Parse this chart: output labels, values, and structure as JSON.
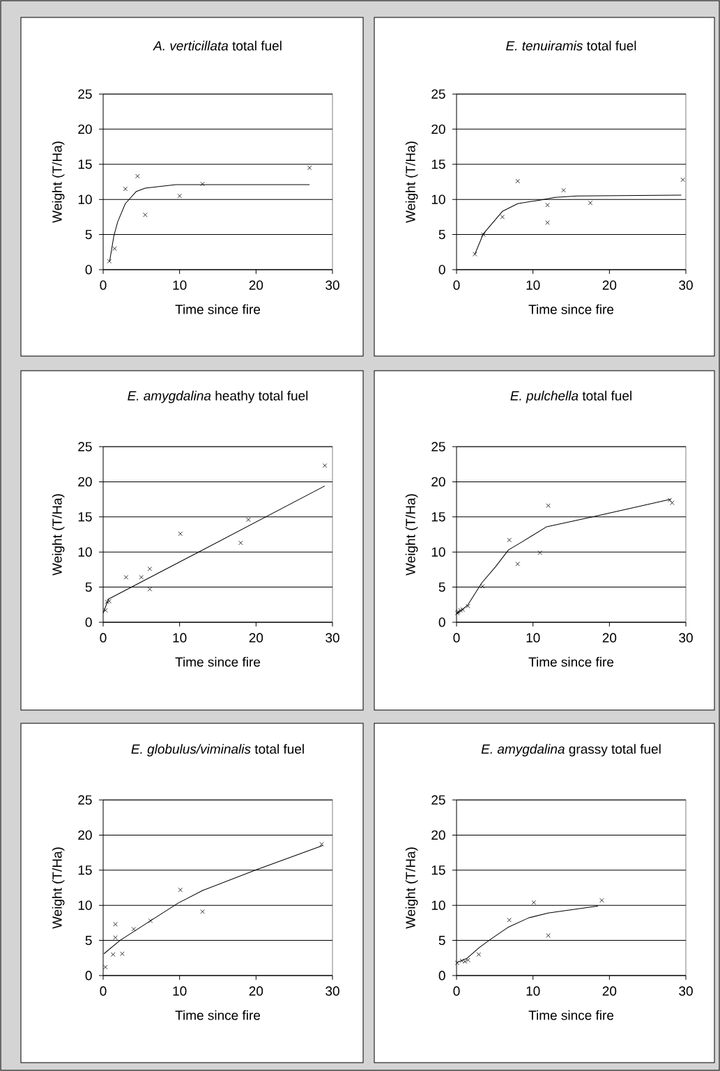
{
  "chart_data": [
    {
      "type": "scatter",
      "title": "*A. verticillata* total fuel",
      "xlabel": "Time since fire",
      "ylabel": "Weight (T/Ha)",
      "xlim": [
        0,
        30
      ],
      "ylim": [
        0,
        25
      ],
      "xticks": [
        0,
        10,
        20,
        30
      ],
      "yticks": [
        0,
        5,
        10,
        15,
        20,
        25
      ],
      "grid": "y",
      "series": [
        {
          "marker": "cross",
          "color": "#000000",
          "x": [
            0.8,
            1.5,
            2.9,
            4.5,
            5.5,
            10,
            13,
            27
          ],
          "values": [
            1.2,
            3.0,
            11.5,
            13.3,
            7.8,
            10.5,
            12.2,
            14.5
          ]
        },
        {
          "type": "line",
          "marker": "none",
          "color": "#000000",
          "x": [
            0.85,
            1.4,
            1.9,
            2.9,
            4.3,
            5.5,
            9.5,
            27
          ],
          "values": [
            1.2,
            4.8,
            6.8,
            9.4,
            11.1,
            11.6,
            12.1,
            12.1
          ]
        }
      ]
    },
    {
      "type": "scatter",
      "title": "*E. tenuiramis* total fuel",
      "xlabel": "Time since fire",
      "ylabel": "Weight (T/Ha)",
      "xlim": [
        0,
        30
      ],
      "ylim": [
        0,
        25
      ],
      "xticks": [
        0,
        10,
        20,
        30
      ],
      "yticks": [
        0,
        5,
        10,
        15,
        20,
        25
      ],
      "grid": "y",
      "series": [
        {
          "marker": "cross",
          "color": "#000000",
          "x": [
            2.4,
            3.5,
            6.0,
            8.0,
            11.9,
            11.9,
            14.0,
            17.5,
            29.6
          ],
          "values": [
            2.2,
            5.0,
            7.5,
            12.6,
            9.2,
            6.7,
            11.3,
            9.5,
            12.8
          ]
        },
        {
          "type": "line",
          "marker": "none",
          "color": "#000000",
          "x": [
            2.4,
            3.5,
            6.0,
            8.0,
            10.9,
            12.9,
            15.8,
            29.4
          ],
          "values": [
            2.2,
            5.1,
            8.3,
            9.4,
            9.9,
            10.3,
            10.5,
            10.6
          ]
        }
      ]
    },
    {
      "type": "scatter",
      "title": "*E. amygdalina* heathy total fuel",
      "xlabel": "Time since fire",
      "ylabel": "Weight (T/Ha)",
      "xlim": [
        0,
        30
      ],
      "ylim": [
        0,
        25
      ],
      "xticks": [
        0,
        10,
        20,
        30
      ],
      "yticks": [
        0,
        5,
        10,
        15,
        20,
        25
      ],
      "grid": "y",
      "series": [
        {
          "marker": "cross",
          "color": "#000000",
          "x": [
            0.3,
            0.5,
            0.8,
            3.0,
            5.0,
            6.1,
            6.1,
            10.1,
            18,
            19,
            29
          ],
          "values": [
            1.7,
            2.9,
            3.0,
            6.4,
            6.4,
            7.6,
            4.7,
            12.6,
            11.3,
            14.6,
            22.3
          ]
        },
        {
          "type": "line",
          "marker": "none",
          "color": "#000000",
          "x": [
            0,
            0.7,
            12.5,
            29
          ],
          "values": [
            1.3,
            3.3,
            10.0,
            19.4
          ]
        }
      ]
    },
    {
      "type": "scatter",
      "title": "*E. pulchella* total fuel",
      "xlabel": "Time since fire",
      "ylabel": "Weight (T/Ha)",
      "xlim": [
        0,
        30
      ],
      "ylim": [
        0,
        25
      ],
      "xticks": [
        0,
        10,
        20,
        30
      ],
      "yticks": [
        0,
        5,
        10,
        15,
        20,
        25
      ],
      "grid": "y",
      "series": [
        {
          "marker": "cross",
          "color": "#000000",
          "x": [
            0.1,
            0.2,
            0.5,
            0.8,
            1.5,
            3.4,
            6.9,
            8.0,
            10.9,
            12,
            27.9,
            28.2
          ],
          "values": [
            1.3,
            1.5,
            1.7,
            1.8,
            2.3,
            5.1,
            11.7,
            8.3,
            9.9,
            16.6,
            17.4,
            17.0
          ]
        },
        {
          "type": "line",
          "marker": "none",
          "color": "#000000",
          "x": [
            0.1,
            1.5,
            3.3,
            5.1,
            6.8,
            8.5,
            11.8,
            18.2,
            28
          ],
          "values": [
            1.2,
            2.5,
            5.6,
            7.9,
            10.3,
            11.4,
            13.6,
            15.1,
            17.5
          ]
        }
      ]
    },
    {
      "type": "scatter",
      "title": "*E. globulus/viminalis* total fuel",
      "xlabel": "Time since fire",
      "ylabel": "Weight (T/Ha)",
      "xlim": [
        0,
        30
      ],
      "ylim": [
        0,
        25
      ],
      "xticks": [
        0,
        10,
        20,
        30
      ],
      "yticks": [
        0,
        5,
        10,
        15,
        20,
        25
      ],
      "grid": "y",
      "series": [
        {
          "marker": "cross",
          "color": "#000000",
          "x": [
            0.3,
            1.3,
            1.6,
            1.6,
            2.5,
            4.0,
            6.2,
            10.1,
            13,
            28.6
          ],
          "values": [
            1.2,
            3.0,
            7.3,
            5.4,
            3.1,
            6.6,
            7.8,
            12.2,
            9.1,
            18.7
          ]
        },
        {
          "type": "line",
          "marker": "none",
          "color": "#000000",
          "x": [
            0.1,
            2.2,
            6.2,
            9.8,
            13,
            19.9,
            28.7
          ],
          "values": [
            3.1,
            5.0,
            7.8,
            10.3,
            12.1,
            15.0,
            18.5
          ]
        }
      ]
    },
    {
      "type": "scatter",
      "title": "*E. amygdalina* grassy total fuel",
      "xlabel": "Time since fire",
      "ylabel": "Weight (T/Ha)",
      "xlim": [
        0,
        30
      ],
      "ylim": [
        0,
        25
      ],
      "xticks": [
        0,
        10,
        20,
        30
      ],
      "yticks": [
        0,
        5,
        10,
        15,
        20,
        25
      ],
      "grid": "y",
      "series": [
        {
          "marker": "cross",
          "color": "#000000",
          "x": [
            0.1,
            0.7,
            1.1,
            1.5,
            2.9,
            6.9,
            10.1,
            12,
            19
          ],
          "values": [
            1.8,
            2.1,
            2.0,
            2.2,
            3.0,
            7.9,
            10.4,
            5.7,
            10.7
          ]
        },
        {
          "type": "line",
          "marker": "none",
          "color": "#000000",
          "x": [
            0.1,
            1.3,
            3.0,
            4.5,
            6.8,
            9.4,
            12,
            18.5
          ],
          "values": [
            1.9,
            2.4,
            4.0,
            5.2,
            6.9,
            8.2,
            8.9,
            9.9
          ]
        }
      ]
    }
  ]
}
